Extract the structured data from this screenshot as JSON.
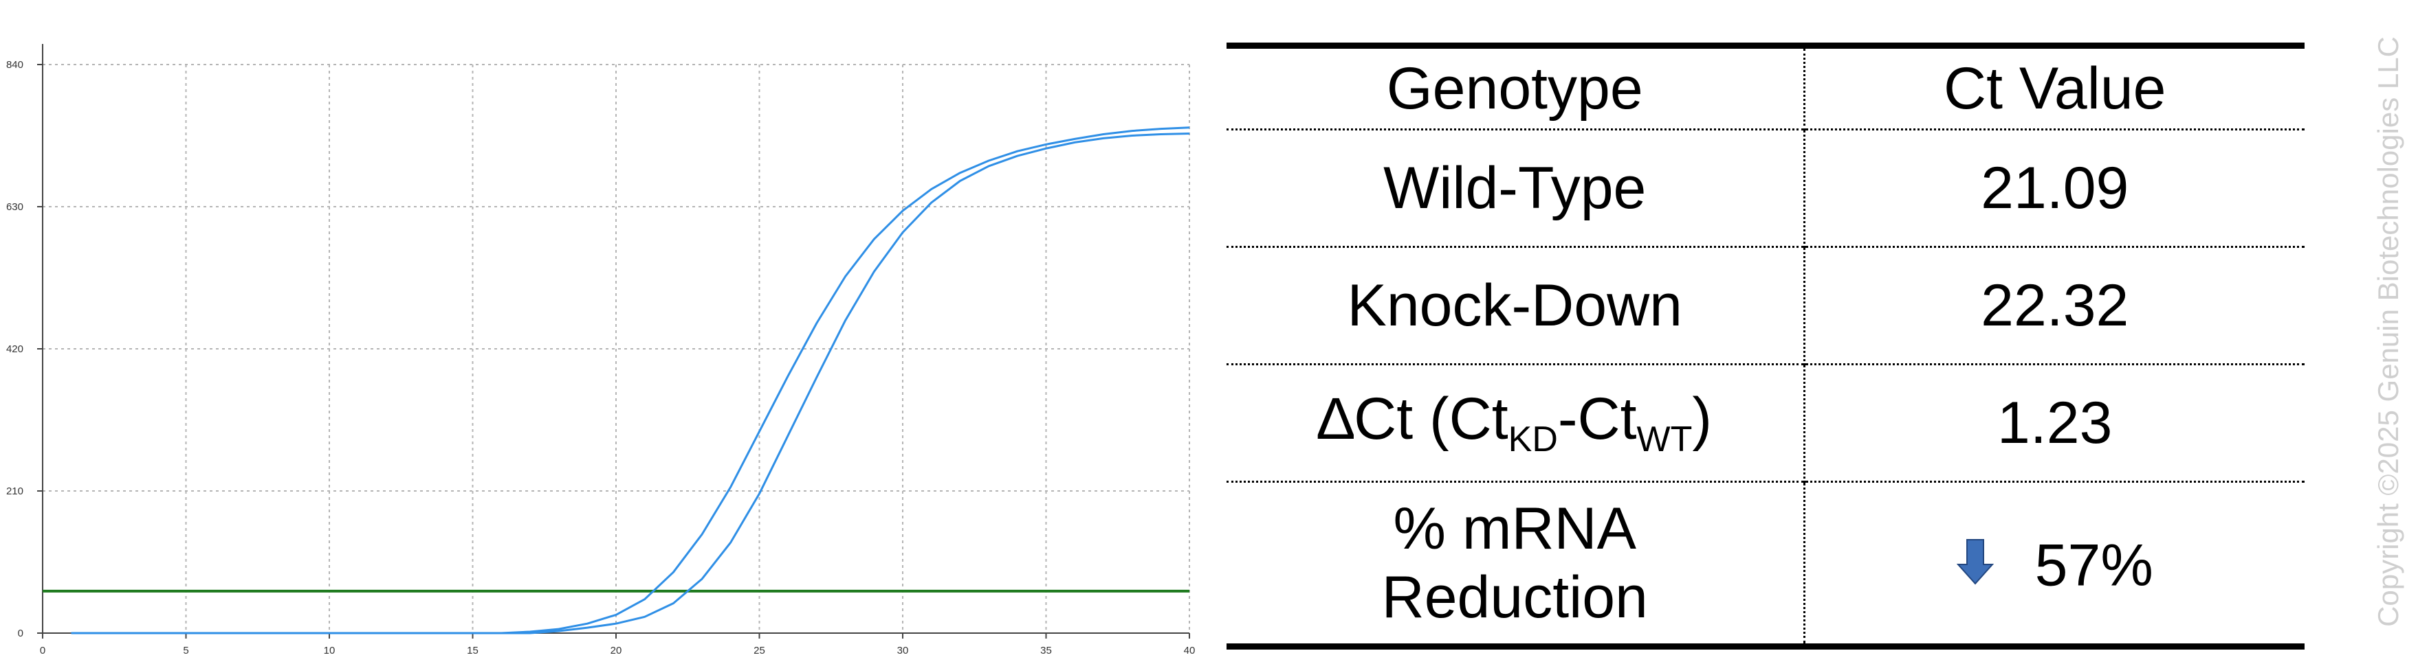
{
  "chart_data": {
    "type": "line",
    "title": "",
    "xlabel": "",
    "ylabel": "",
    "xlim": [
      0,
      40
    ],
    "ylim": [
      0,
      840
    ],
    "x_ticks": [
      0,
      5,
      10,
      15,
      20,
      25,
      30,
      35,
      40
    ],
    "y_ticks": [
      0,
      210,
      420,
      630,
      840
    ],
    "grid": true,
    "legend": "none",
    "threshold": {
      "y": 62,
      "color": "#1e7a1e"
    },
    "curve_color": "#2f8fe6",
    "series": [
      {
        "x": [
          1,
          10,
          16,
          17,
          18,
          19,
          20,
          21,
          22,
          23,
          24,
          25,
          26,
          27,
          28,
          29,
          30,
          31,
          32,
          33,
          34,
          35,
          36,
          37,
          38,
          39,
          40
        ],
        "values": [
          0,
          0,
          0,
          2,
          6,
          14,
          27,
          50,
          90,
          146,
          216,
          298,
          380,
          458,
          527,
          582,
          624,
          656,
          680,
          698,
          712,
          722,
          730,
          737,
          742,
          745,
          747
        ]
      },
      {
        "x": [
          1,
          10,
          17,
          18,
          19,
          20,
          21,
          22,
          23,
          24,
          25,
          26,
          27,
          28,
          29,
          30,
          31,
          32,
          33,
          34,
          35,
          36,
          37,
          38,
          39,
          40
        ],
        "values": [
          0,
          0,
          0,
          3,
          8,
          14,
          24,
          44,
          80,
          134,
          206,
          292,
          378,
          462,
          534,
          592,
          636,
          668,
          690,
          705,
          716,
          725,
          731,
          735,
          737,
          738
        ]
      }
    ]
  },
  "table": {
    "headers": [
      "Genotype",
      "Ct Value"
    ],
    "rows": [
      {
        "genotype": "Wild-Type",
        "ct": "21.09"
      },
      {
        "genotype": "Knock-Down",
        "ct": "22.32"
      }
    ],
    "delta": {
      "prefix": "∆Ct (Ct",
      "sub1": "KD",
      "mid": "-Ct",
      "sub2": "WT",
      "suffix": ")",
      "value": "1.23"
    },
    "reduction": {
      "label_line1": "% mRNA",
      "label_line2": "Reduction",
      "value": "57%",
      "arrow_color": "#3d6fb8"
    }
  },
  "watermark": "Copyright ©2025 Genuin Biotechnologies LLC"
}
